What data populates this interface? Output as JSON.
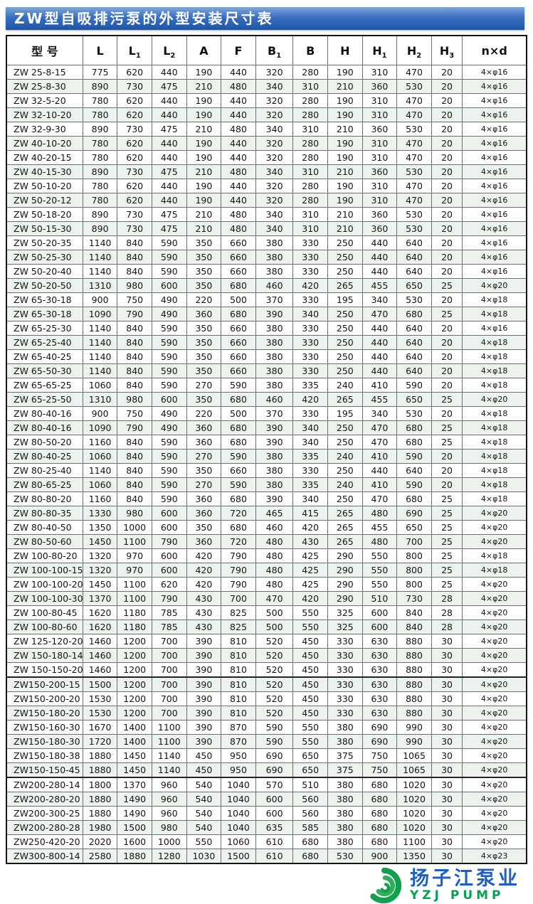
{
  "title": "ZW型自吸排污泵的外型安装尺寸表",
  "table": {
    "columns": [
      {
        "t": "型  号"
      },
      {
        "t": "L"
      },
      {
        "t": "L",
        "s": "1"
      },
      {
        "t": "L",
        "s": "2"
      },
      {
        "t": "A"
      },
      {
        "t": "F"
      },
      {
        "t": "B",
        "s": "1"
      },
      {
        "t": "B"
      },
      {
        "t": "H"
      },
      {
        "t": "H",
        "s": "1"
      },
      {
        "t": "H",
        "s": "2"
      },
      {
        "t": "H",
        "s": "3"
      },
      {
        "t": "n×d"
      }
    ],
    "rows": [
      [
        "ZW 25-8-15",
        775,
        620,
        440,
        190,
        440,
        320,
        280,
        190,
        310,
        470,
        20,
        "4×φ16"
      ],
      [
        "ZW 25-8-30",
        890,
        730,
        475,
        210,
        480,
        340,
        310,
        210,
        360,
        530,
        20,
        "4×φ16"
      ],
      [
        "ZW 32-5-20",
        780,
        620,
        440,
        190,
        440,
        320,
        280,
        190,
        310,
        470,
        20,
        "4×φ16"
      ],
      [
        "ZW 32-10-20",
        780,
        620,
        440,
        190,
        440,
        320,
        280,
        190,
        310,
        470,
        20,
        "4×φ16"
      ],
      [
        "ZW 32-9-30",
        890,
        730,
        475,
        210,
        480,
        340,
        310,
        210,
        360,
        530,
        20,
        "4×φ16"
      ],
      [
        "ZW 40-10-20",
        780,
        620,
        440,
        190,
        440,
        320,
        280,
        190,
        310,
        470,
        20,
        "4×φ16"
      ],
      [
        "ZW 40-20-15",
        780,
        620,
        440,
        190,
        440,
        320,
        280,
        190,
        310,
        470,
        20,
        "4×φ16"
      ],
      [
        "ZW 40-15-30",
        890,
        730,
        475,
        210,
        480,
        340,
        310,
        210,
        360,
        530,
        20,
        "4×φ16"
      ],
      [
        "ZW 50-10-20",
        780,
        620,
        440,
        190,
        440,
        320,
        280,
        190,
        310,
        470,
        20,
        "4×φ16"
      ],
      [
        "ZW 50-20-12",
        780,
        620,
        440,
        190,
        440,
        320,
        280,
        190,
        310,
        470,
        20,
        "4×φ16"
      ],
      [
        "ZW 50-18-20",
        890,
        730,
        475,
        210,
        480,
        340,
        310,
        210,
        360,
        530,
        20,
        "4×φ16"
      ],
      [
        "ZW 50-15-30",
        890,
        730,
        475,
        210,
        480,
        340,
        310,
        210,
        360,
        530,
        20,
        "4×φ16"
      ],
      [
        "ZW 50-20-35",
        1140,
        840,
        590,
        350,
        660,
        380,
        330,
        250,
        440,
        640,
        20,
        "4×φ16"
      ],
      [
        "ZW 50-25-30",
        1140,
        840,
        590,
        350,
        660,
        380,
        330,
        250,
        440,
        640,
        20,
        "4×φ16"
      ],
      [
        "ZW 50-20-40",
        1140,
        840,
        590,
        350,
        660,
        380,
        330,
        250,
        440,
        640,
        20,
        "4×φ16"
      ],
      [
        "ZW 50-20-50",
        1310,
        980,
        600,
        350,
        680,
        460,
        420,
        265,
        455,
        650,
        25,
        "4×φ20"
      ],
      [
        "ZW 65-30-18",
        900,
        750,
        490,
        220,
        500,
        370,
        330,
        195,
        340,
        530,
        20,
        "4×φ18"
      ],
      [
        "ZW 65-30-18",
        1090,
        790,
        490,
        360,
        680,
        390,
        340,
        250,
        470,
        680,
        25,
        "4×φ18"
      ],
      [
        "ZW 65-25-30",
        1140,
        840,
        590,
        350,
        660,
        380,
        330,
        250,
        440,
        640,
        20,
        "4×φ16"
      ],
      [
        "ZW 65-25-40",
        1140,
        840,
        590,
        350,
        660,
        380,
        330,
        250,
        440,
        640,
        20,
        "4×φ18"
      ],
      [
        "ZW 65-40-25",
        1140,
        840,
        590,
        350,
        660,
        380,
        330,
        250,
        440,
        640,
        20,
        "4×φ18"
      ],
      [
        "ZW 65-50-30",
        1140,
        840,
        590,
        350,
        660,
        380,
        330,
        250,
        440,
        640,
        20,
        "4×φ18"
      ],
      [
        "ZW 65-65-25",
        1060,
        840,
        590,
        270,
        590,
        380,
        335,
        240,
        410,
        590,
        20,
        "4×φ18"
      ],
      [
        "ZW 65-25-50",
        1310,
        980,
        600,
        350,
        680,
        460,
        420,
        265,
        455,
        650,
        25,
        "4×φ20"
      ],
      [
        "ZW 80-40-16",
        900,
        750,
        490,
        220,
        500,
        370,
        330,
        195,
        340,
        530,
        20,
        "4×φ18"
      ],
      [
        "ZW 80-40-16",
        1090,
        790,
        490,
        360,
        680,
        390,
        340,
        250,
        470,
        680,
        25,
        "4×φ18"
      ],
      [
        "ZW 80-50-20",
        1160,
        840,
        590,
        360,
        680,
        390,
        340,
        250,
        470,
        680,
        25,
        "4×φ18"
      ],
      [
        "ZW 80-40-25",
        1060,
        840,
        590,
        270,
        590,
        380,
        335,
        240,
        410,
        590,
        20,
        "4×φ18"
      ],
      [
        "ZW 80-25-40",
        1140,
        840,
        590,
        350,
        660,
        380,
        330,
        250,
        440,
        640,
        20,
        "4×φ18"
      ],
      [
        "ZW 80-65-25",
        1060,
        840,
        590,
        270,
        590,
        380,
        335,
        240,
        410,
        590,
        20,
        "4×φ18"
      ],
      [
        "ZW 80-80-20",
        1160,
        840,
        590,
        360,
        680,
        390,
        340,
        250,
        470,
        680,
        25,
        "4×φ18"
      ],
      [
        "ZW 80-80-35",
        1330,
        980,
        600,
        360,
        720,
        465,
        415,
        265,
        480,
        690,
        25,
        "4×φ20"
      ],
      [
        "ZW 80-40-50",
        1350,
        1000,
        600,
        350,
        680,
        460,
        420,
        265,
        455,
        650,
        25,
        "4×φ20"
      ],
      [
        "ZW 80-50-60",
        1450,
        1100,
        790,
        360,
        720,
        480,
        430,
        265,
        480,
        700,
        25,
        "4×φ20"
      ],
      [
        "ZW 100-80-20",
        1320,
        970,
        600,
        420,
        790,
        480,
        425,
        290,
        550,
        800,
        25,
        "4×φ18"
      ],
      [
        "ZW 100-100-15",
        1320,
        970,
        600,
        420,
        790,
        480,
        425,
        290,
        550,
        800,
        25,
        "4×φ18"
      ],
      [
        "ZW 100-100-20",
        1450,
        1100,
        620,
        420,
        790,
        480,
        425,
        290,
        550,
        800,
        25,
        "4×φ20"
      ],
      [
        "ZW 100-100-30",
        1370,
        1100,
        790,
        430,
        700,
        470,
        420,
        290,
        510,
        730,
        28,
        "4×φ20"
      ],
      [
        "ZW 100-80-45",
        1620,
        1180,
        785,
        430,
        825,
        500,
        550,
        325,
        600,
        840,
        28,
        "4×φ20"
      ],
      [
        "ZW 100-80-60",
        1620,
        1180,
        785,
        430,
        825,
        500,
        550,
        325,
        600,
        840,
        28,
        "4×φ20"
      ],
      [
        "ZW 125-120-20",
        1460,
        1200,
        700,
        390,
        810,
        520,
        450,
        330,
        630,
        880,
        30,
        "4×φ20"
      ],
      [
        "ZW 150-180-14",
        1460,
        1200,
        700,
        390,
        810,
        520,
        450,
        330,
        630,
        880,
        30,
        "4×φ20"
      ],
      [
        "ZW 150-150-20",
        1460,
        1200,
        700,
        390,
        810,
        520,
        450,
        330,
        630,
        880,
        30,
        "4×φ20"
      ],
      [
        "ZW150-200-15",
        1500,
        1200,
        700,
        390,
        810,
        520,
        450,
        330,
        630,
        880,
        30,
        "4×φ20"
      ],
      [
        "ZW150-200-20",
        1530,
        1200,
        700,
        390,
        810,
        520,
        450,
        330,
        630,
        880,
        30,
        "4×φ20"
      ],
      [
        "ZW150-180-20",
        1530,
        1200,
        700,
        390,
        810,
        520,
        450,
        330,
        630,
        880,
        30,
        "4×φ20"
      ],
      [
        "ZW150-160-30",
        1670,
        1400,
        1100,
        390,
        870,
        590,
        550,
        380,
        690,
        990,
        30,
        "4×φ20"
      ],
      [
        "ZW150-180-30",
        1720,
        1400,
        1100,
        390,
        870,
        590,
        550,
        380,
        690,
        990,
        30,
        "4×φ20"
      ],
      [
        "ZW150-180-38",
        1880,
        1450,
        1140,
        450,
        950,
        690,
        650,
        375,
        750,
        1065,
        30,
        "4×φ20"
      ],
      [
        "ZW150-150-45",
        1880,
        1450,
        1140,
        450,
        950,
        690,
        650,
        375,
        750,
        1065,
        30,
        "4×φ20"
      ],
      [
        "ZW200-280-14",
        1800,
        1370,
        960,
        540,
        1040,
        570,
        510,
        380,
        680,
        1020,
        30,
        "4×φ20"
      ],
      [
        "ZW200-280-20",
        1880,
        1490,
        960,
        540,
        1040,
        600,
        560,
        380,
        680,
        1020,
        30,
        "4×φ20"
      ],
      [
        "ZW200-300-25",
        1880,
        1490,
        960,
        540,
        1040,
        600,
        560,
        380,
        680,
        1020,
        30,
        "4×φ20"
      ],
      [
        "ZW200-280-28",
        1980,
        1500,
        980,
        540,
        1040,
        635,
        585,
        380,
        680,
        1020,
        30,
        "4×φ20"
      ],
      [
        "ZW250-420-20",
        2020,
        1600,
        1000,
        550,
        1060,
        610,
        680,
        380,
        680,
        1100,
        30,
        "4×φ20"
      ],
      [
        "ZW300-800-14",
        2580,
        1880,
        1280,
        1030,
        1500,
        610,
        680,
        530,
        900,
        1350,
        30,
        "4×φ23"
      ]
    ],
    "group_separator_after_rows": [
      42,
      49
    ]
  },
  "logo": {
    "name_cn": "扬子江泵业",
    "name_en": "YZJ PUMP",
    "brand_blue": "#1d5fc2",
    "brand_green": "#00a551"
  },
  "colors": {
    "title_bar_top": "#7ea6da",
    "title_bar_bottom": "#1c55a8",
    "row_tint": "#ecf3ec"
  }
}
